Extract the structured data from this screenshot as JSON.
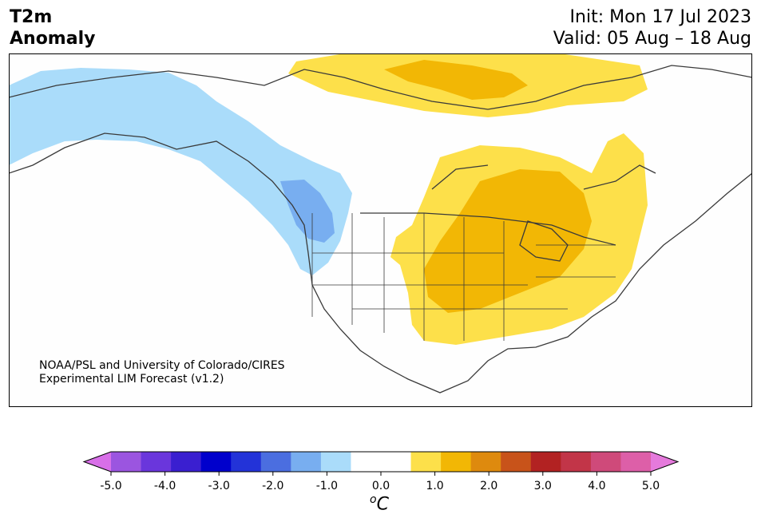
{
  "title": {
    "line1": "T2m",
    "line2": "Anomaly"
  },
  "init": "Init: Mon 17 Jul 2023",
  "valid": "Valid: 05 Aug – 18 Aug",
  "credit": {
    "line1": "NOAA/PSL and University of Colorado/CIRES",
    "line2": "Experimental LIM Forecast (v1.2)"
  },
  "colorbar": {
    "ticks": [
      "-5.0",
      "-4.0",
      "-3.0",
      "-2.0",
      "-1.0",
      "0.0",
      "1.0",
      "2.0",
      "3.0",
      "4.0",
      "5.0"
    ],
    "unit": "C",
    "unit_superscript": "o",
    "colors": [
      "#d86fe8",
      "#9b55e0",
      "#6a36dc",
      "#3a1fd0",
      "#0000cc",
      "#2333d8",
      "#4b6ee0",
      "#78aef0",
      "#aadcfa",
      "#ffffff",
      "#ffffff",
      "#fde04a",
      "#f2b705",
      "#de8a0e",
      "#c8531a",
      "#b22222",
      "#c23548",
      "#cf4a7a",
      "#dd5fa8",
      "#e57adc"
    ]
  },
  "map_regions": {
    "cold_light": "#aadcfa",
    "cold_medium": "#78aef0",
    "warm_light": "#fde04a",
    "warm_medium": "#f2b705"
  }
}
